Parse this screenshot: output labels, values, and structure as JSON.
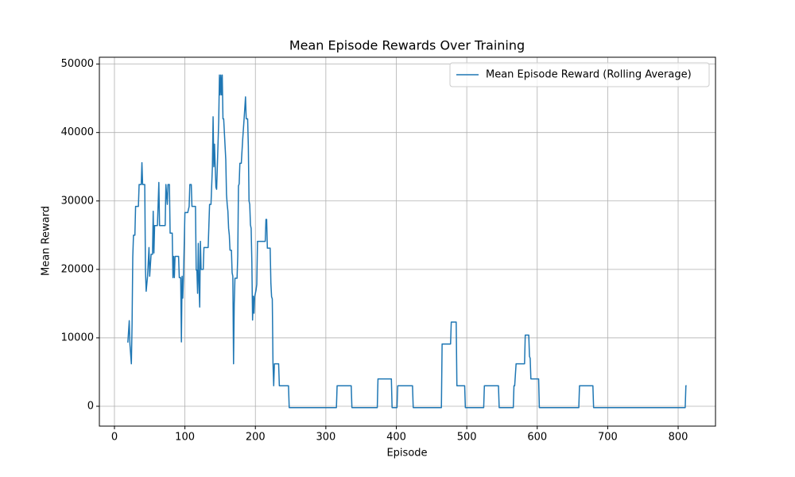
{
  "chart_data": {
    "type": "line",
    "title": "Mean Episode Rewards Over Training",
    "x_label": "Episode",
    "y_label": "Mean Reward",
    "x": [
      19,
      21,
      22,
      24,
      25,
      26,
      27,
      29,
      30,
      34,
      35,
      38,
      39,
      40,
      43,
      44,
      45,
      47,
      49,
      50,
      52,
      54,
      55,
      56,
      57,
      61,
      63,
      64,
      72,
      73,
      75,
      76,
      78,
      79,
      82,
      83,
      84,
      85,
      86,
      91,
      92,
      94,
      95,
      96,
      97,
      98,
      100,
      104,
      106,
      107,
      109,
      110,
      115,
      116,
      117,
      118,
      119,
      120,
      121,
      122,
      123,
      126,
      127,
      133,
      135,
      137,
      139,
      140,
      141,
      142,
      143,
      144,
      145,
      146,
      148,
      149,
      150,
      151,
      152,
      153,
      154,
      155,
      157,
      158,
      159,
      160,
      161,
      162,
      163,
      164,
      166,
      167,
      168,
      169,
      170,
      171,
      174,
      175,
      176,
      177,
      178,
      180,
      182,
      184,
      186,
      187,
      189,
      190,
      191,
      192,
      193,
      194,
      195,
      196,
      197,
      198,
      199,
      201,
      202,
      203,
      214,
      215,
      216,
      217,
      221,
      222,
      223,
      224,
      225,
      226,
      227,
      233,
      234,
      247,
      248,
      315,
      316,
      336,
      337,
      373,
      374,
      393,
      394,
      401,
      402,
      423,
      424,
      464,
      465,
      477,
      478,
      485,
      486,
      497,
      498,
      524,
      525,
      545,
      546,
      566,
      567,
      568,
      570,
      582,
      583,
      588,
      589,
      590,
      591,
      602,
      603,
      659,
      660,
      679,
      680,
      810,
      811,
      812
    ],
    "series": [
      {
        "name": "Mean Episode Reward (Rolling Average)",
        "color": "#1f77b4",
        "values": [
          9300,
          12500,
          9000,
          6200,
          12000,
          21800,
          25000,
          25000,
          29200,
          29200,
          32400,
          32400,
          35600,
          32400,
          32400,
          20000,
          16800,
          19000,
          23200,
          19000,
          22200,
          22200,
          28500,
          22400,
          26400,
          26400,
          32700,
          26400,
          26400,
          32400,
          29500,
          32400,
          32400,
          25300,
          25300,
          18800,
          21900,
          18800,
          21900,
          21900,
          18800,
          18800,
          9400,
          19000,
          15800,
          19000,
          28300,
          28300,
          29200,
          32400,
          32400,
          29200,
          29200,
          19900,
          19900,
          16500,
          23800,
          18000,
          14500,
          24100,
          20000,
          20000,
          23200,
          23200,
          29500,
          29500,
          35000,
          42300,
          35000,
          38300,
          35000,
          32000,
          31700,
          35000,
          41800,
          48400,
          45500,
          48400,
          45500,
          48400,
          42000,
          42000,
          38000,
          36000,
          31000,
          29500,
          28500,
          26000,
          25000,
          22800,
          22800,
          19500,
          19000,
          6200,
          15000,
          18700,
          18700,
          22000,
          32200,
          32500,
          35500,
          35500,
          39000,
          42000,
          45200,
          42000,
          42000,
          38000,
          30000,
          29500,
          26500,
          26000,
          21000,
          12600,
          16100,
          13600,
          16000,
          17000,
          17800,
          24100,
          24100,
          27300,
          27300,
          23100,
          23100,
          18000,
          16000,
          15700,
          6200,
          3000,
          6200,
          6200,
          3000,
          3000,
          -200,
          -200,
          3000,
          3000,
          -200,
          -200,
          4000,
          4000,
          -200,
          -200,
          3000,
          3000,
          -200,
          -200,
          9100,
          9100,
          12300,
          12300,
          3000,
          3000,
          -200,
          -200,
          3000,
          3000,
          -200,
          -200,
          3000,
          3000,
          6200,
          6200,
          10400,
          10400,
          7300,
          7000,
          4000,
          4000,
          -200,
          -200,
          3000,
          3000,
          -200,
          -200,
          3000,
          3000
        ]
      }
    ],
    "xlim": [
      -21.4,
      853
    ],
    "ylim": [
      -2900,
      51000
    ],
    "xticks": [
      0,
      100,
      200,
      300,
      400,
      500,
      600,
      700,
      800
    ],
    "yticks": [
      0,
      10000,
      20000,
      30000,
      40000,
      50000
    ],
    "grid": true,
    "legend": "upper right"
  }
}
